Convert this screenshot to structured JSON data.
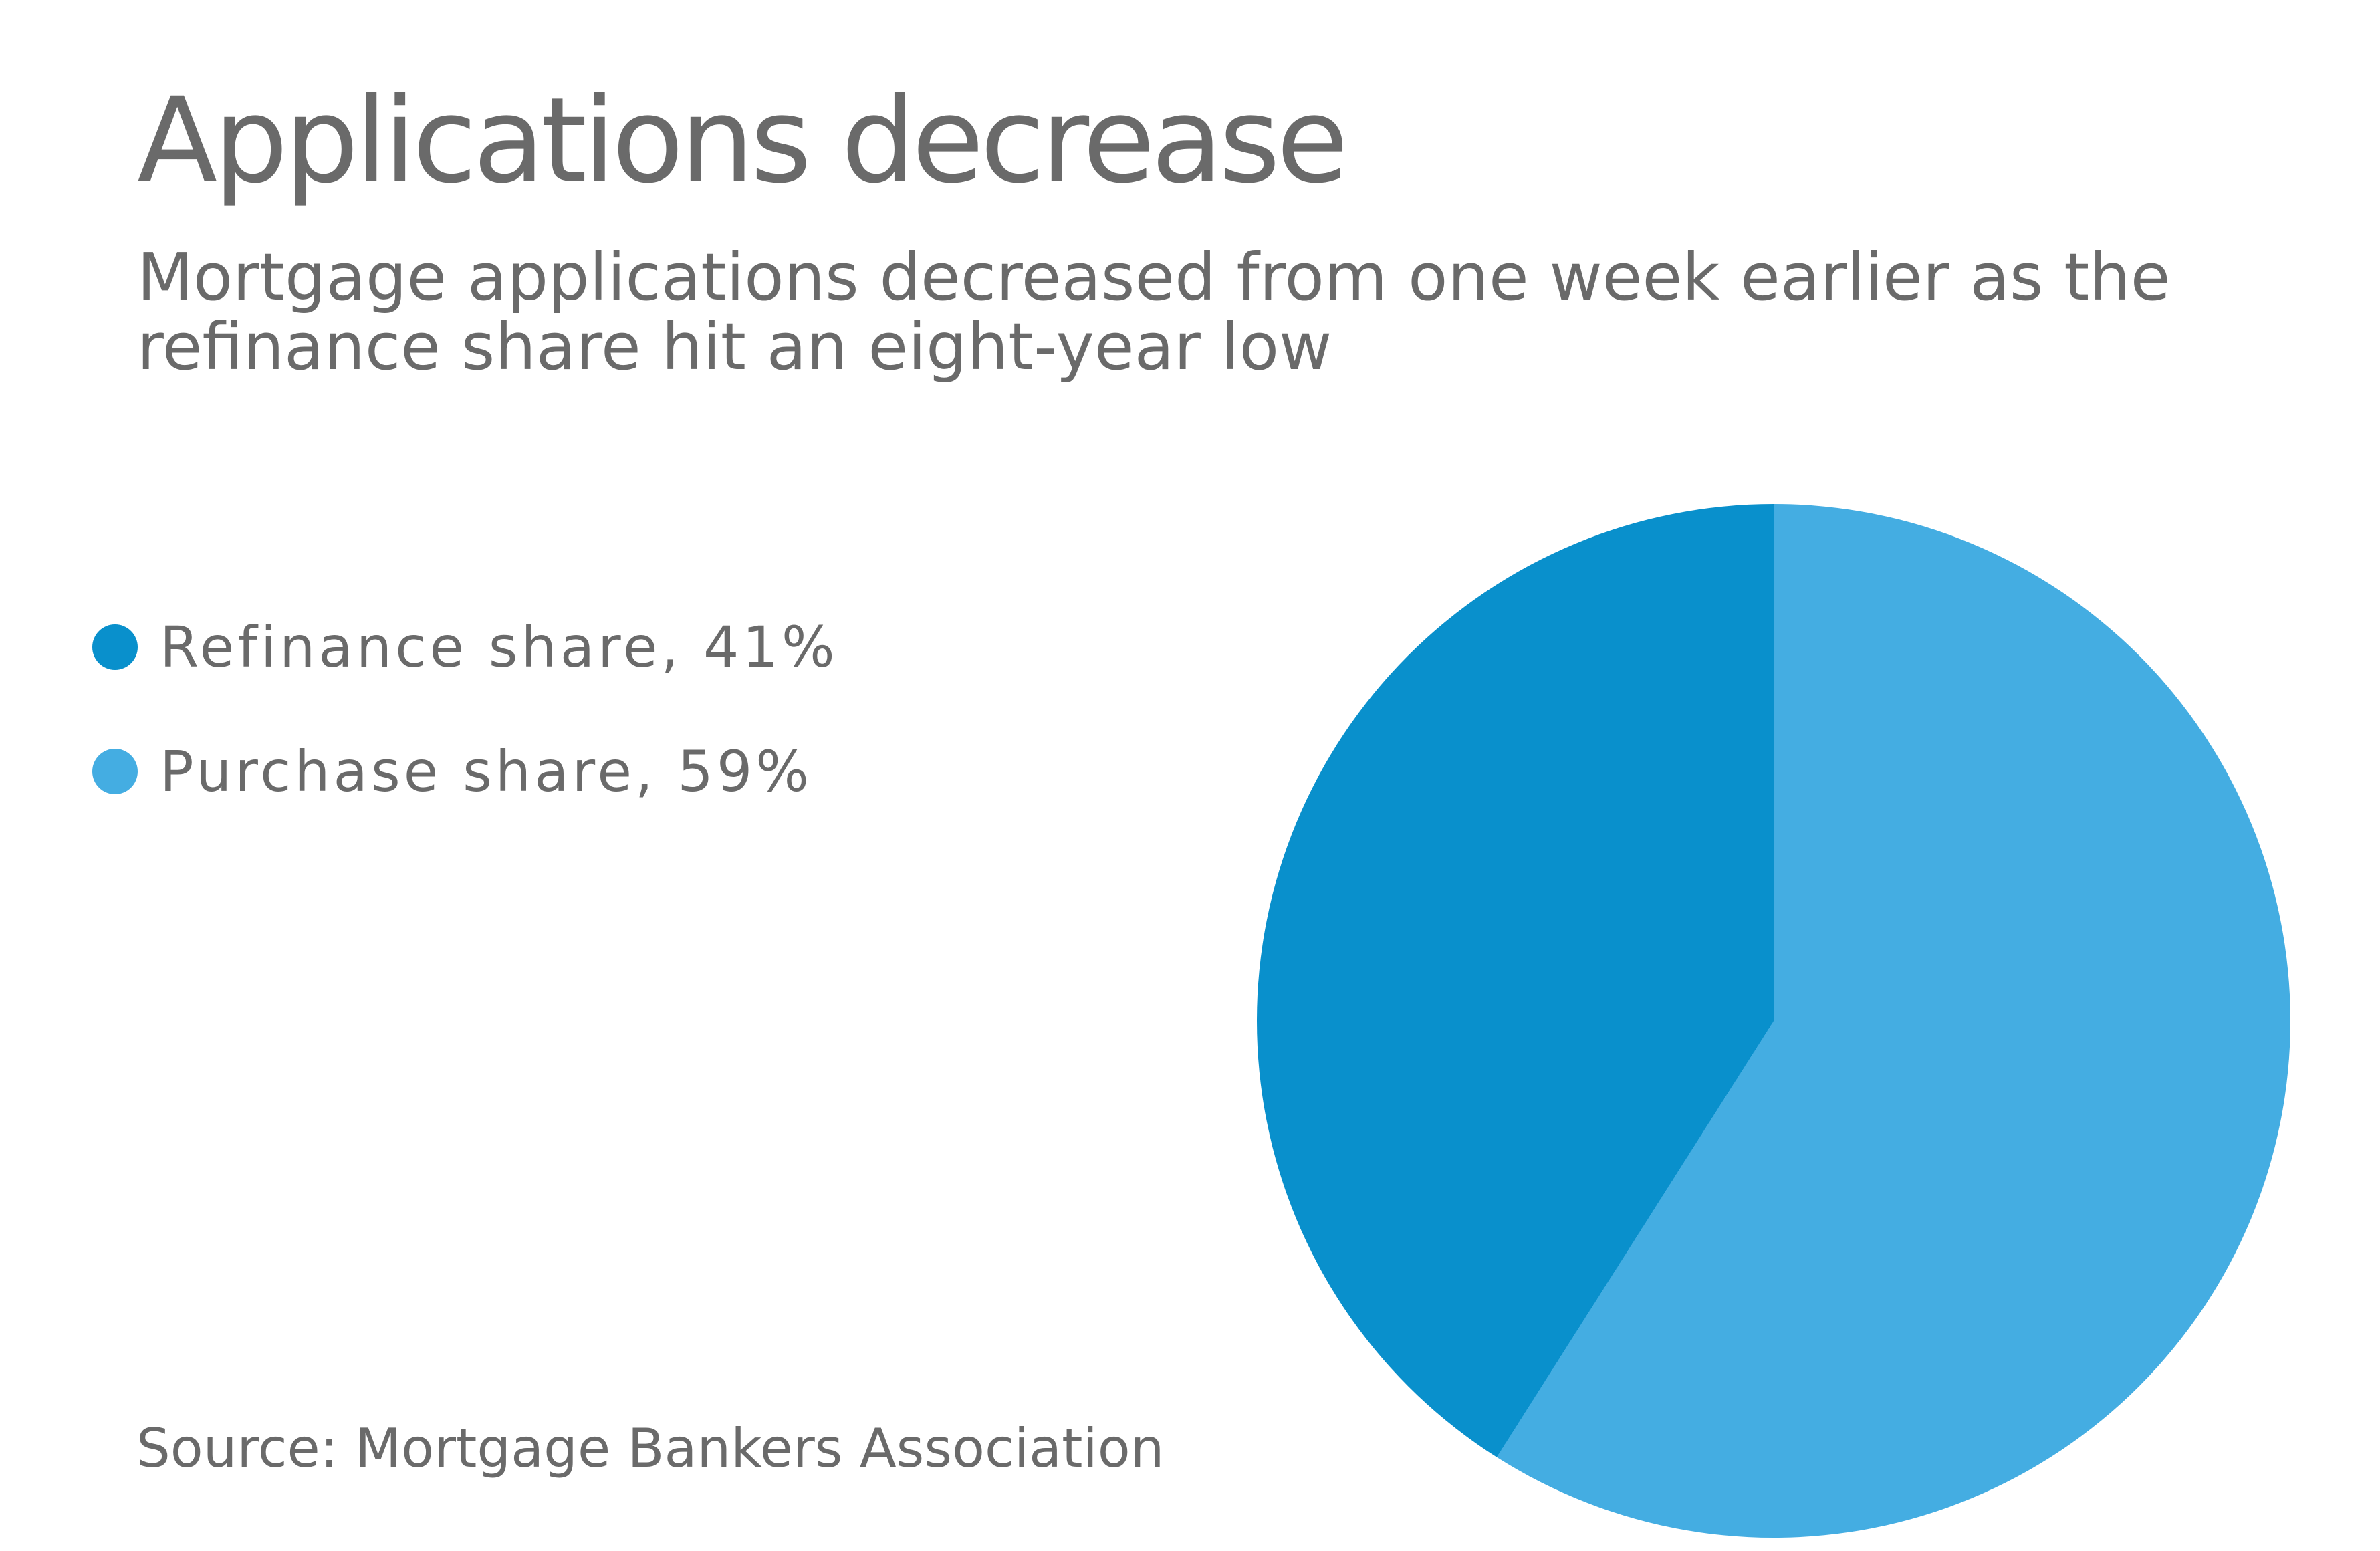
{
  "colors": {
    "background": "#ffffff",
    "text_gray": "#6a6a6a",
    "refinance_blue": "#0990cc",
    "purchase_blue": "#44ade2"
  },
  "header": {
    "title": "Applications decrease",
    "subtitle_line1": "Mortgage applications decreased from one week earlier as the",
    "subtitle_line2": "refinance share hit an eight-year low"
  },
  "legend": {
    "items": [
      {
        "text": "Refinance share, 41%",
        "color": "#0990cc"
      },
      {
        "text": "Purchase share, 59%",
        "color": "#44ade2"
      }
    ]
  },
  "source": {
    "text": "Source: Mortgage Bankers Association"
  },
  "chart_data": {
    "type": "pie",
    "title": "Applications decrease",
    "subtitle": "Mortgage applications decreased from one week earlier as the refinance share hit an eight-year low",
    "slices": [
      {
        "label": "Refinance share",
        "value_pct": 41,
        "color": "#0990cc"
      },
      {
        "label": "Purchase share",
        "value_pct": 59,
        "color": "#44ade2"
      }
    ],
    "start_position": "12 o'clock",
    "first_slice_direction": "counterclockwise",
    "legend_position": "middle-left",
    "source": "Source: Mortgage Bankers Association"
  }
}
